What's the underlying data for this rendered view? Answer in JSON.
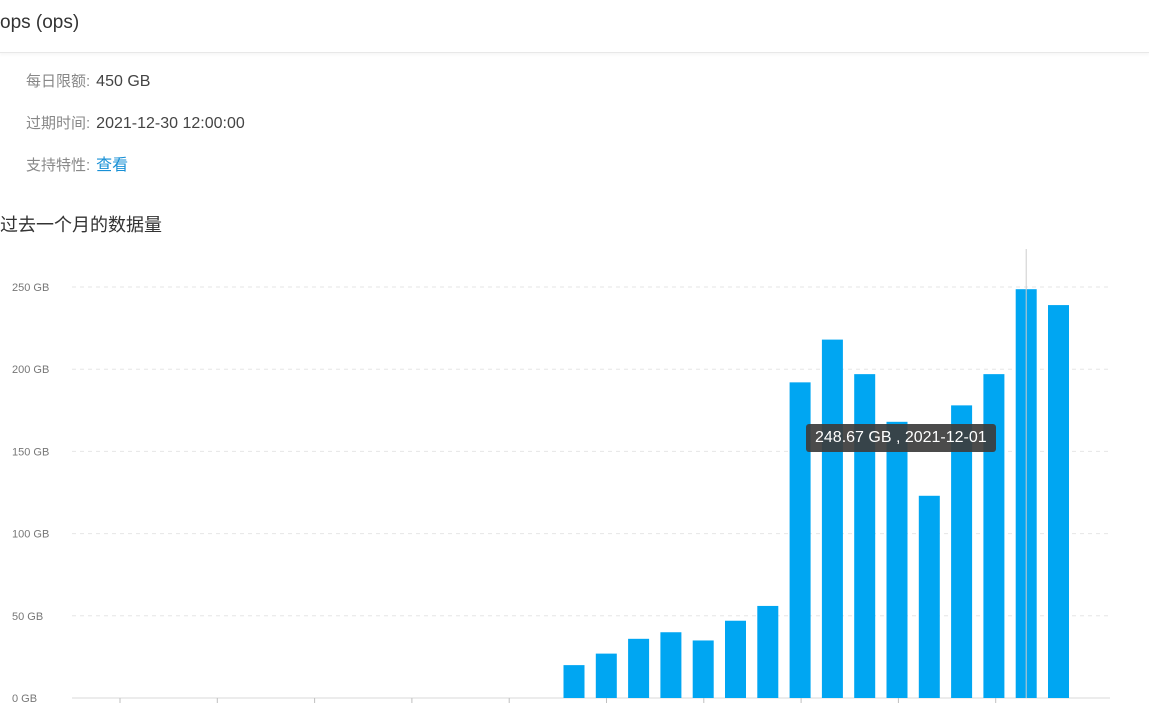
{
  "header": {
    "title": "ops (ops)"
  },
  "info": {
    "daily_limit_label": "每日限额:",
    "daily_limit_value": "450 GB",
    "expire_label": "过期时间:",
    "expire_value": "2021-12-30 12:00:00",
    "features_label": "支持特性:",
    "features_link": "查看"
  },
  "section": {
    "title": "过去一个月的数据量"
  },
  "tooltip": {
    "text": "248.67 GB , 2021-12-01"
  },
  "colors": {
    "bar": "#00a6f2",
    "link": "#1890d6",
    "tooltip_bg": "#3c3c3c"
  },
  "chart_data": {
    "type": "bar",
    "title": "",
    "xlabel": "",
    "ylabel": "",
    "y_unit": "GB",
    "ylim": [
      0,
      250
    ],
    "yticks": [
      "0 GB",
      "50 GB",
      "100 GB",
      "150 GB",
      "200 GB",
      "250 GB"
    ],
    "grid": true,
    "values": [
      0,
      0,
      0,
      0,
      0,
      0,
      0,
      0,
      0,
      0,
      0,
      0,
      0,
      0,
      0,
      0,
      0,
      20,
      27,
      36,
      40,
      35,
      47,
      56,
      192,
      218,
      197,
      168,
      123,
      178,
      197,
      248.67,
      239
    ],
    "highlight": {
      "index": 31,
      "value": 248.67,
      "date": "2021-12-01"
    }
  }
}
